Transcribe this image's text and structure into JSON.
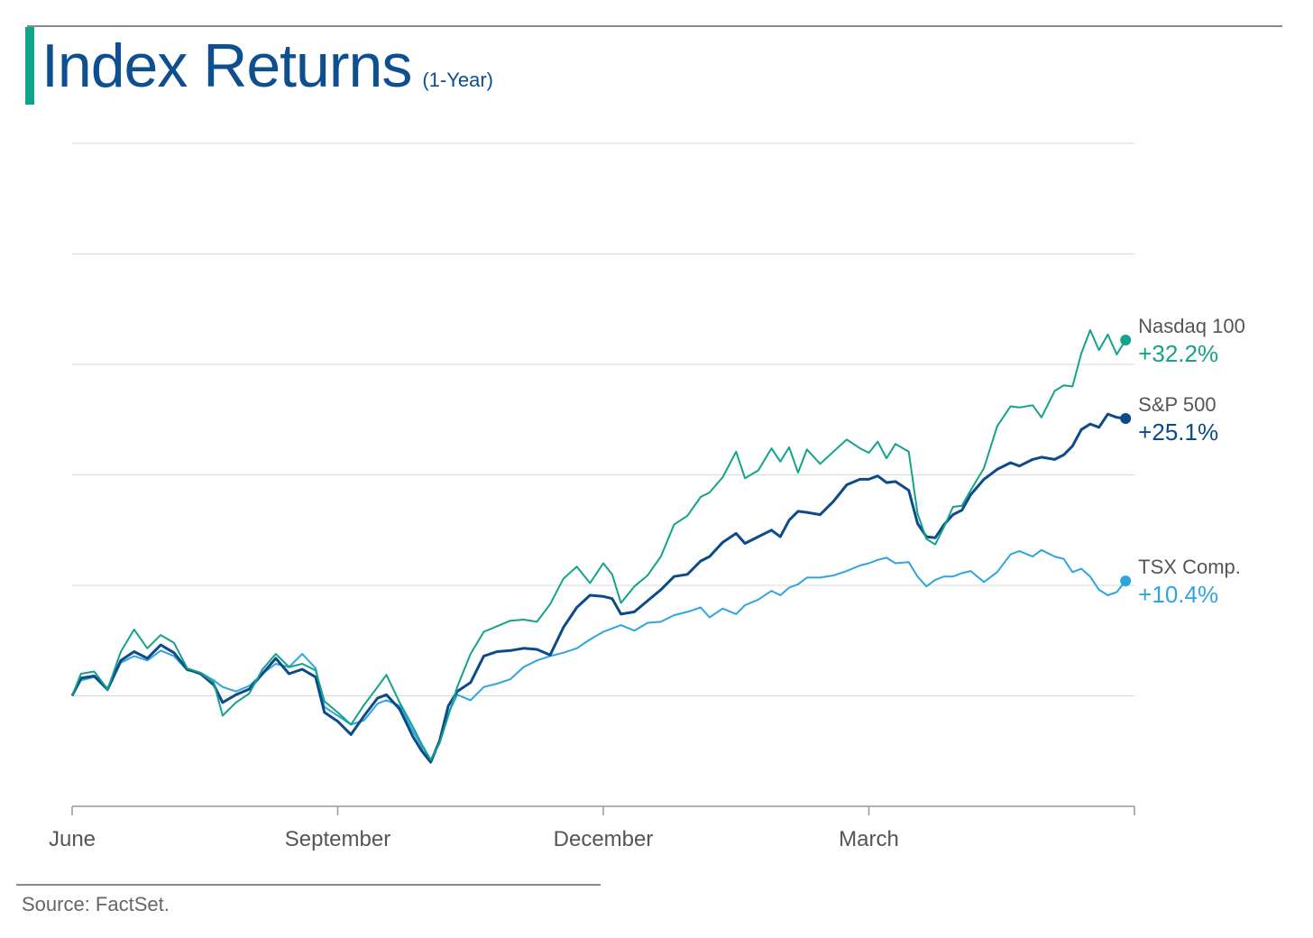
{
  "header": {
    "title": "Index Returns",
    "subtitle": "(1-Year)"
  },
  "footer": {
    "source": "Source: FactSet."
  },
  "colors": {
    "nasdaq": "#12a38a",
    "sp500": "#0d4a8a",
    "tsx": "#2fa5e0",
    "grid": "#d9d9d9",
    "axis": "#999999",
    "tick_label": "#555555"
  },
  "chart_data": {
    "type": "line",
    "x_ticks": [
      "June",
      "September",
      "December",
      "March"
    ],
    "xlim": [
      0,
      12
    ],
    "x_tick_positions": [
      0,
      3,
      6,
      9
    ],
    "ylim": [
      -10,
      50
    ],
    "y_grid": [
      -10,
      0,
      10,
      20,
      30,
      40,
      50
    ],
    "grid": true,
    "series": [
      {
        "name": "Nasdaq 100",
        "end_label": "+32.2%",
        "color_key": "nasdaq",
        "points": [
          [
            0.0,
            0.0
          ],
          [
            0.1,
            2.0
          ],
          [
            0.25,
            2.2
          ],
          [
            0.4,
            0.6
          ],
          [
            0.55,
            4.0
          ],
          [
            0.7,
            6.0
          ],
          [
            0.85,
            4.3
          ],
          [
            1.0,
            5.5
          ],
          [
            1.15,
            4.8
          ],
          [
            1.3,
            2.5
          ],
          [
            1.45,
            2.1
          ],
          [
            1.6,
            1.2
          ],
          [
            1.7,
            -1.8
          ],
          [
            1.85,
            -0.6
          ],
          [
            2.0,
            0.2
          ],
          [
            2.15,
            2.4
          ],
          [
            2.3,
            3.8
          ],
          [
            2.45,
            2.6
          ],
          [
            2.6,
            2.9
          ],
          [
            2.75,
            2.3
          ],
          [
            2.85,
            -0.5
          ],
          [
            3.0,
            -1.5
          ],
          [
            3.15,
            -2.6
          ],
          [
            3.3,
            -0.8
          ],
          [
            3.45,
            0.8
          ],
          [
            3.55,
            1.9
          ],
          [
            3.7,
            -0.6
          ],
          [
            3.85,
            -2.8
          ],
          [
            3.95,
            -4.4
          ],
          [
            4.05,
            -5.8
          ],
          [
            4.15,
            -4.3
          ],
          [
            4.25,
            -1.8
          ],
          [
            4.35,
            0.8
          ],
          [
            4.5,
            3.8
          ],
          [
            4.65,
            5.8
          ],
          [
            4.8,
            6.3
          ],
          [
            4.95,
            6.8
          ],
          [
            5.1,
            6.9
          ],
          [
            5.25,
            6.7
          ],
          [
            5.4,
            8.3
          ],
          [
            5.55,
            10.6
          ],
          [
            5.7,
            11.7
          ],
          [
            5.85,
            10.2
          ],
          [
            6.0,
            12.0
          ],
          [
            6.1,
            11.0
          ],
          [
            6.2,
            8.4
          ],
          [
            6.35,
            9.9
          ],
          [
            6.5,
            10.9
          ],
          [
            6.65,
            12.6
          ],
          [
            6.8,
            15.5
          ],
          [
            6.95,
            16.3
          ],
          [
            7.1,
            18.0
          ],
          [
            7.2,
            18.4
          ],
          [
            7.35,
            19.8
          ],
          [
            7.5,
            22.1
          ],
          [
            7.6,
            19.7
          ],
          [
            7.75,
            20.4
          ],
          [
            7.9,
            22.4
          ],
          [
            8.0,
            21.2
          ],
          [
            8.1,
            22.5
          ],
          [
            8.2,
            20.2
          ],
          [
            8.3,
            22.3
          ],
          [
            8.45,
            21.0
          ],
          [
            8.6,
            22.1
          ],
          [
            8.75,
            23.2
          ],
          [
            8.9,
            22.4
          ],
          [
            9.0,
            22.0
          ],
          [
            9.1,
            23.0
          ],
          [
            9.2,
            21.5
          ],
          [
            9.3,
            22.8
          ],
          [
            9.45,
            22.1
          ],
          [
            9.55,
            16.5
          ],
          [
            9.65,
            14.2
          ],
          [
            9.75,
            13.7
          ],
          [
            9.85,
            15.3
          ],
          [
            9.95,
            17.1
          ],
          [
            10.05,
            17.2
          ],
          [
            10.15,
            18.6
          ],
          [
            10.3,
            20.6
          ],
          [
            10.45,
            24.4
          ],
          [
            10.6,
            26.2
          ],
          [
            10.7,
            26.1
          ],
          [
            10.85,
            26.3
          ],
          [
            10.95,
            25.2
          ],
          [
            11.1,
            27.6
          ],
          [
            11.2,
            28.1
          ],
          [
            11.3,
            28.0
          ],
          [
            11.4,
            31.0
          ],
          [
            11.5,
            33.1
          ],
          [
            11.6,
            31.3
          ],
          [
            11.7,
            32.7
          ],
          [
            11.8,
            30.9
          ],
          [
            11.9,
            32.2
          ]
        ]
      },
      {
        "name": "S&P 500",
        "end_label": "+25.1%",
        "color_key": "sp500",
        "points": [
          [
            0.0,
            0.0
          ],
          [
            0.1,
            1.6
          ],
          [
            0.25,
            1.8
          ],
          [
            0.4,
            0.6
          ],
          [
            0.55,
            3.2
          ],
          [
            0.7,
            4.0
          ],
          [
            0.85,
            3.4
          ],
          [
            1.0,
            4.6
          ],
          [
            1.15,
            3.9
          ],
          [
            1.3,
            2.4
          ],
          [
            1.45,
            2.0
          ],
          [
            1.6,
            1.0
          ],
          [
            1.7,
            -0.6
          ],
          [
            1.85,
            0.1
          ],
          [
            2.0,
            0.6
          ],
          [
            2.15,
            2.0
          ],
          [
            2.3,
            3.4
          ],
          [
            2.45,
            2.0
          ],
          [
            2.6,
            2.4
          ],
          [
            2.75,
            1.7
          ],
          [
            2.85,
            -1.5
          ],
          [
            3.0,
            -2.3
          ],
          [
            3.15,
            -3.5
          ],
          [
            3.3,
            -1.8
          ],
          [
            3.45,
            -0.2
          ],
          [
            3.55,
            0.1
          ],
          [
            3.7,
            -1.2
          ],
          [
            3.85,
            -3.7
          ],
          [
            3.95,
            -5.0
          ],
          [
            4.05,
            -6.0
          ],
          [
            4.15,
            -4.1
          ],
          [
            4.25,
            -0.9
          ],
          [
            4.35,
            0.4
          ],
          [
            4.5,
            1.2
          ],
          [
            4.65,
            3.6
          ],
          [
            4.8,
            4.0
          ],
          [
            4.95,
            4.1
          ],
          [
            5.1,
            4.3
          ],
          [
            5.25,
            4.2
          ],
          [
            5.4,
            3.7
          ],
          [
            5.55,
            6.2
          ],
          [
            5.7,
            8.0
          ],
          [
            5.85,
            9.1
          ],
          [
            6.0,
            9.0
          ],
          [
            6.1,
            8.8
          ],
          [
            6.2,
            7.4
          ],
          [
            6.35,
            7.6
          ],
          [
            6.5,
            8.6
          ],
          [
            6.65,
            9.6
          ],
          [
            6.8,
            10.8
          ],
          [
            6.95,
            11.0
          ],
          [
            7.1,
            12.2
          ],
          [
            7.2,
            12.6
          ],
          [
            7.35,
            13.9
          ],
          [
            7.5,
            14.7
          ],
          [
            7.6,
            13.8
          ],
          [
            7.75,
            14.4
          ],
          [
            7.9,
            15.0
          ],
          [
            8.0,
            14.4
          ],
          [
            8.1,
            15.9
          ],
          [
            8.2,
            16.7
          ],
          [
            8.3,
            16.6
          ],
          [
            8.45,
            16.4
          ],
          [
            8.6,
            17.6
          ],
          [
            8.75,
            19.1
          ],
          [
            8.9,
            19.6
          ],
          [
            9.0,
            19.6
          ],
          [
            9.1,
            19.9
          ],
          [
            9.2,
            19.3
          ],
          [
            9.3,
            19.4
          ],
          [
            9.45,
            18.6
          ],
          [
            9.55,
            15.6
          ],
          [
            9.65,
            14.4
          ],
          [
            9.75,
            14.3
          ],
          [
            9.85,
            15.5
          ],
          [
            9.95,
            16.4
          ],
          [
            10.05,
            16.8
          ],
          [
            10.15,
            18.2
          ],
          [
            10.3,
            19.6
          ],
          [
            10.45,
            20.5
          ],
          [
            10.6,
            21.1
          ],
          [
            10.7,
            20.8
          ],
          [
            10.85,
            21.4
          ],
          [
            10.95,
            21.6
          ],
          [
            11.1,
            21.4
          ],
          [
            11.2,
            21.8
          ],
          [
            11.3,
            22.6
          ],
          [
            11.4,
            24.1
          ],
          [
            11.5,
            24.6
          ],
          [
            11.6,
            24.3
          ],
          [
            11.7,
            25.5
          ],
          [
            11.8,
            25.2
          ],
          [
            11.9,
            25.1
          ]
        ]
      },
      {
        "name": "TSX Comp.",
        "end_label": "+10.4%",
        "color_key": "tsx",
        "points": [
          [
            0.0,
            0.0
          ],
          [
            0.1,
            1.4
          ],
          [
            0.25,
            1.7
          ],
          [
            0.4,
            0.5
          ],
          [
            0.55,
            3.0
          ],
          [
            0.7,
            3.6
          ],
          [
            0.85,
            3.2
          ],
          [
            1.0,
            4.1
          ],
          [
            1.15,
            3.6
          ],
          [
            1.3,
            2.3
          ],
          [
            1.45,
            2.1
          ],
          [
            1.6,
            1.4
          ],
          [
            1.7,
            0.8
          ],
          [
            1.85,
            0.4
          ],
          [
            2.0,
            0.9
          ],
          [
            2.15,
            2.0
          ],
          [
            2.3,
            2.9
          ],
          [
            2.45,
            2.6
          ],
          [
            2.6,
            3.8
          ],
          [
            2.75,
            2.5
          ],
          [
            2.85,
            -1.0
          ],
          [
            3.0,
            -1.8
          ],
          [
            3.15,
            -2.6
          ],
          [
            3.3,
            -2.2
          ],
          [
            3.45,
            -0.7
          ],
          [
            3.55,
            -0.4
          ],
          [
            3.7,
            -0.9
          ],
          [
            3.85,
            -3.2
          ],
          [
            3.95,
            -4.6
          ],
          [
            4.05,
            -5.8
          ],
          [
            4.15,
            -4.3
          ],
          [
            4.25,
            -1.6
          ],
          [
            4.35,
            0.1
          ],
          [
            4.5,
            -0.4
          ],
          [
            4.65,
            0.8
          ],
          [
            4.8,
            1.1
          ],
          [
            4.95,
            1.5
          ],
          [
            5.1,
            2.6
          ],
          [
            5.25,
            3.2
          ],
          [
            5.4,
            3.6
          ],
          [
            5.55,
            3.9
          ],
          [
            5.7,
            4.3
          ],
          [
            5.85,
            5.1
          ],
          [
            6.0,
            5.8
          ],
          [
            6.1,
            6.1
          ],
          [
            6.2,
            6.4
          ],
          [
            6.35,
            5.9
          ],
          [
            6.5,
            6.6
          ],
          [
            6.65,
            6.7
          ],
          [
            6.8,
            7.3
          ],
          [
            6.95,
            7.6
          ],
          [
            7.1,
            8.0
          ],
          [
            7.2,
            7.1
          ],
          [
            7.35,
            7.9
          ],
          [
            7.5,
            7.4
          ],
          [
            7.6,
            8.2
          ],
          [
            7.75,
            8.7
          ],
          [
            7.9,
            9.5
          ],
          [
            8.0,
            9.1
          ],
          [
            8.1,
            9.8
          ],
          [
            8.2,
            10.1
          ],
          [
            8.3,
            10.7
          ],
          [
            8.45,
            10.7
          ],
          [
            8.6,
            10.9
          ],
          [
            8.75,
            11.3
          ],
          [
            8.9,
            11.8
          ],
          [
            9.0,
            12.0
          ],
          [
            9.1,
            12.3
          ],
          [
            9.2,
            12.5
          ],
          [
            9.3,
            12.0
          ],
          [
            9.45,
            12.1
          ],
          [
            9.55,
            10.8
          ],
          [
            9.65,
            9.9
          ],
          [
            9.75,
            10.5
          ],
          [
            9.85,
            10.8
          ],
          [
            9.95,
            10.8
          ],
          [
            10.05,
            11.1
          ],
          [
            10.15,
            11.3
          ],
          [
            10.3,
            10.3
          ],
          [
            10.45,
            11.2
          ],
          [
            10.6,
            12.8
          ],
          [
            10.7,
            13.1
          ],
          [
            10.85,
            12.6
          ],
          [
            10.95,
            13.2
          ],
          [
            11.1,
            12.6
          ],
          [
            11.2,
            12.4
          ],
          [
            11.3,
            11.2
          ],
          [
            11.4,
            11.5
          ],
          [
            11.5,
            10.8
          ],
          [
            11.6,
            9.6
          ],
          [
            11.7,
            9.1
          ],
          [
            11.8,
            9.4
          ],
          [
            11.9,
            10.4
          ]
        ]
      }
    ]
  }
}
